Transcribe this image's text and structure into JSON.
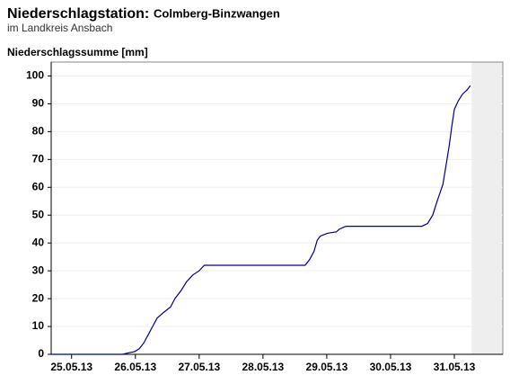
{
  "chart_data": {
    "type": "line",
    "title": "Niederschlagstation:",
    "station": "Colmberg-Binzwangen",
    "subtitle": "im Landkreis Ansbach",
    "ylabel": "Niederschlagssumme [mm]",
    "ylim": [
      0,
      105
    ],
    "yticks": [
      0,
      10,
      20,
      30,
      40,
      50,
      60,
      70,
      80,
      90,
      100
    ],
    "xlim": [
      -0.32,
      6.76
    ],
    "xticks": [
      {
        "value": 0,
        "label": "25.05.13"
      },
      {
        "value": 1,
        "label": "26.05.13"
      },
      {
        "value": 2,
        "label": "27.05.13"
      },
      {
        "value": 3,
        "label": "28.05.13"
      },
      {
        "value": 4,
        "label": "29.05.13"
      },
      {
        "value": 5,
        "label": "30.05.13"
      },
      {
        "value": 6,
        "label": "31.05.13"
      }
    ],
    "grid": true,
    "shade_from": 6.27,
    "series": [
      {
        "color": "#00008b",
        "x": [
          -0.32,
          0.8,
          0.85,
          0.99,
          1.06,
          1.13,
          1.2,
          1.27,
          1.34,
          1.44,
          1.55,
          1.62,
          1.72,
          1.8,
          1.9,
          2.0,
          2.08,
          3.66,
          3.73,
          3.8,
          3.85,
          3.9,
          4.01,
          4.15,
          4.2,
          4.3,
          5.49,
          5.58,
          5.66,
          5.73,
          5.82,
          5.87,
          5.92,
          5.96,
          6.0,
          6.06,
          6.13,
          6.2,
          6.25
        ],
        "values": [
          0,
          0,
          0.3,
          1,
          2,
          4,
          7,
          10,
          13,
          15,
          17,
          20,
          23,
          26,
          28.5,
          30,
          32,
          32,
          34,
          37,
          41,
          42.5,
          43.5,
          44,
          45,
          46,
          46,
          47,
          50,
          55,
          61,
          68,
          75,
          82,
          88,
          91,
          93.5,
          95,
          96.5
        ]
      }
    ]
  }
}
